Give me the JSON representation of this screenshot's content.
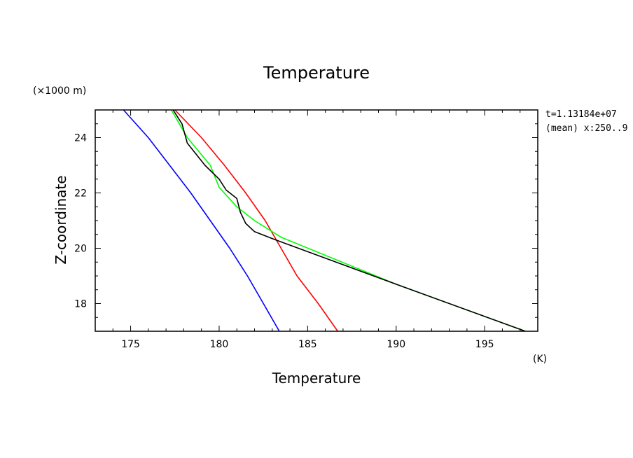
{
  "chart_data": {
    "type": "line",
    "title": "Temperature",
    "xlabel": "Temperature",
    "ylabel": "Z-coordinate",
    "x_unit": "(K)",
    "y_unit": "(×1000 m)",
    "info_lines": [
      "t=1.13184e+07",
      "(mean) x:250..9"
    ],
    "xlim": [
      173,
      198
    ],
    "ylim": [
      17,
      25
    ],
    "xticks": [
      175,
      180,
      185,
      190,
      195
    ],
    "yticks": [
      18,
      20,
      22,
      24
    ],
    "grid": false,
    "series": [
      {
        "color": "#0000ff",
        "points": [
          [
            174.6,
            25.0
          ],
          [
            176.0,
            24.0
          ],
          [
            177.2,
            23.0
          ],
          [
            178.4,
            22.0
          ],
          [
            179.5,
            21.0
          ],
          [
            180.6,
            20.0
          ],
          [
            181.6,
            19.0
          ],
          [
            182.5,
            18.0
          ],
          [
            183.4,
            17.0
          ]
        ]
      },
      {
        "color": "#ff0000",
        "points": [
          [
            177.5,
            25.0
          ],
          [
            179.0,
            24.0
          ],
          [
            180.3,
            23.0
          ],
          [
            181.5,
            22.0
          ],
          [
            182.6,
            21.0
          ],
          [
            183.5,
            20.0
          ],
          [
            184.4,
            19.0
          ],
          [
            185.6,
            18.0
          ],
          [
            186.7,
            17.0
          ]
        ]
      },
      {
        "color": "#00ff00",
        "points": [
          [
            177.3,
            25.0
          ],
          [
            178.2,
            24.0
          ],
          [
            179.5,
            23.0
          ],
          [
            180.0,
            22.2
          ],
          [
            181.0,
            21.5
          ],
          [
            182.0,
            21.0
          ],
          [
            183.5,
            20.4
          ],
          [
            190.0,
            18.7
          ],
          [
            197.3,
            17.0
          ]
        ]
      },
      {
        "color": "#000000",
        "points": [
          [
            177.4,
            25.0
          ],
          [
            177.9,
            24.5
          ],
          [
            178.2,
            23.8
          ],
          [
            179.2,
            23.0
          ],
          [
            180.0,
            22.5
          ],
          [
            180.4,
            22.1
          ],
          [
            181.0,
            21.8
          ],
          [
            181.2,
            21.3
          ],
          [
            181.5,
            20.9
          ],
          [
            182.0,
            20.6
          ],
          [
            183.2,
            20.3
          ],
          [
            190.0,
            18.7
          ],
          [
            197.3,
            17.0
          ]
        ]
      }
    ]
  }
}
